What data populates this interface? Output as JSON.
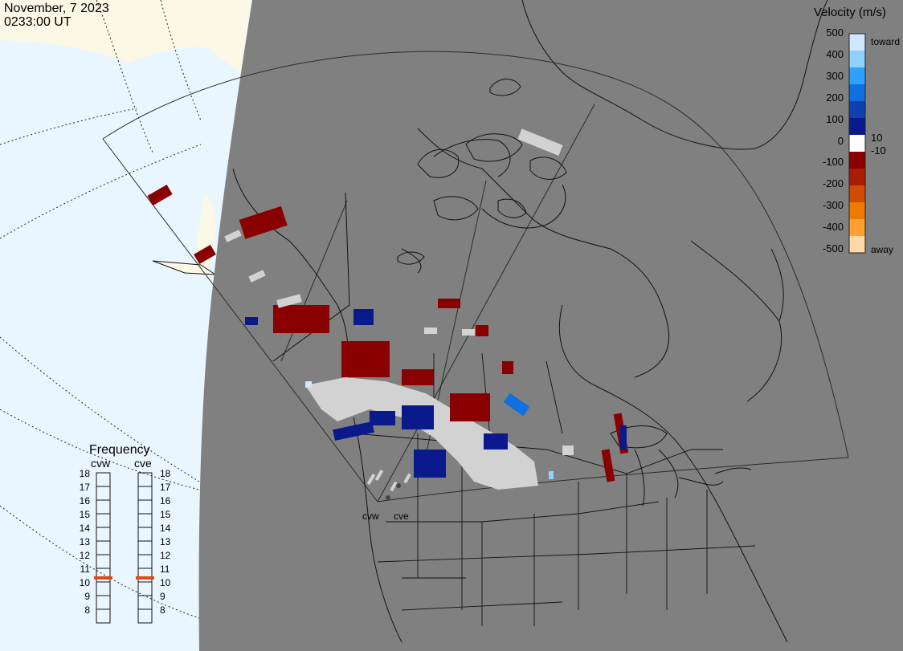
{
  "header": {
    "date": "November, 7 2023",
    "time": "0233:00 UT"
  },
  "colors": {
    "ocean": "#eaf6ff",
    "land_day": "#fbf8e6",
    "night": "#808080",
    "ground_scatter": "#d2d2d2",
    "coast": "#111111"
  },
  "velocity_scale": {
    "title": "Velocity (m/s)",
    "ticks": [
      "500",
      "400",
      "300",
      "200",
      "100",
      "10",
      "0",
      "-10",
      "-100",
      "-200",
      "-300",
      "-400",
      "-500"
    ],
    "toward_label": "toward",
    "away_label": "away",
    "colors": [
      "#cfe8ff",
      "#8fd0ff",
      "#2fa0ff",
      "#1070e0",
      "#1040b0",
      "#0a1a8c",
      "#ffffff",
      "#8a0000",
      "#aa1c00",
      "#d04a00",
      "#ee7a00",
      "#ffa030",
      "#ffd8a8"
    ]
  },
  "frequency_panel": {
    "title": "Frequency",
    "radars": [
      {
        "code": "cvw",
        "freq_mhz": 10.8
      },
      {
        "code": "cve",
        "freq_mhz": 10.8
      }
    ],
    "ticks": [
      "18",
      "17",
      "16",
      "15",
      "14",
      "13",
      "12",
      "11",
      "10",
      "9",
      "8"
    ],
    "marker_color": "#e04a14"
  },
  "radar_sites": [
    {
      "code": "cvw"
    },
    {
      "code": "cve"
    }
  ]
}
